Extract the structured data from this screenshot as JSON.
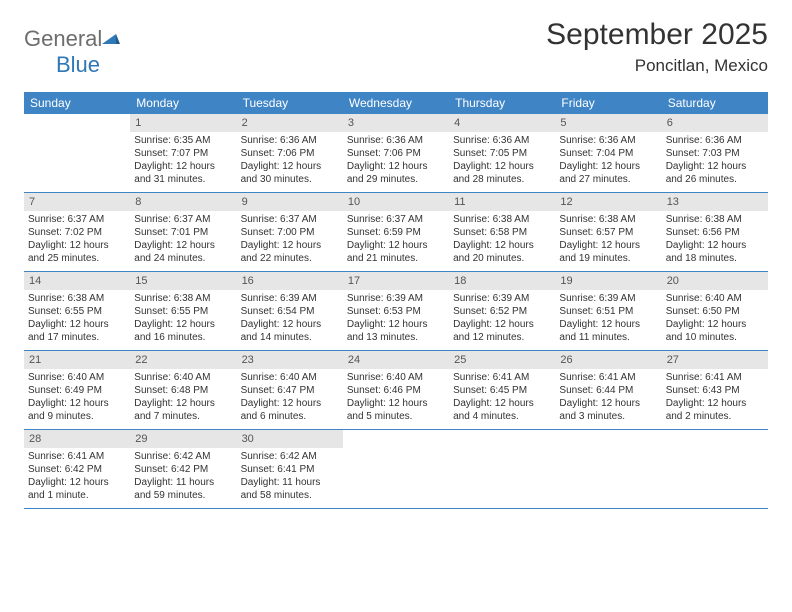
{
  "logo": {
    "text1": "General",
    "text2": "Blue"
  },
  "header": {
    "month_title": "September 2025",
    "location": "Poncitlan, Mexico"
  },
  "colors": {
    "header_bar": "#3f85c6",
    "daynum_bg": "#e6e6e6",
    "text": "#333333",
    "logo_gray": "#6e6e6e",
    "logo_blue": "#2f77b5",
    "row_divider": "#3f85c6",
    "background": "#ffffff"
  },
  "typography": {
    "title_fontsize": 30,
    "location_fontsize": 17,
    "weekday_fontsize": 12,
    "cell_fontsize": 10,
    "logo_fontsize": 22
  },
  "weekdays": [
    "Sunday",
    "Monday",
    "Tuesday",
    "Wednesday",
    "Thursday",
    "Friday",
    "Saturday"
  ],
  "weeks": [
    [
      null,
      {
        "num": "1",
        "sunrise": "Sunrise: 6:35 AM",
        "sunset": "Sunset: 7:07 PM",
        "daylight": "Daylight: 12 hours and 31 minutes."
      },
      {
        "num": "2",
        "sunrise": "Sunrise: 6:36 AM",
        "sunset": "Sunset: 7:06 PM",
        "daylight": "Daylight: 12 hours and 30 minutes."
      },
      {
        "num": "3",
        "sunrise": "Sunrise: 6:36 AM",
        "sunset": "Sunset: 7:06 PM",
        "daylight": "Daylight: 12 hours and 29 minutes."
      },
      {
        "num": "4",
        "sunrise": "Sunrise: 6:36 AM",
        "sunset": "Sunset: 7:05 PM",
        "daylight": "Daylight: 12 hours and 28 minutes."
      },
      {
        "num": "5",
        "sunrise": "Sunrise: 6:36 AM",
        "sunset": "Sunset: 7:04 PM",
        "daylight": "Daylight: 12 hours and 27 minutes."
      },
      {
        "num": "6",
        "sunrise": "Sunrise: 6:36 AM",
        "sunset": "Sunset: 7:03 PM",
        "daylight": "Daylight: 12 hours and 26 minutes."
      }
    ],
    [
      {
        "num": "7",
        "sunrise": "Sunrise: 6:37 AM",
        "sunset": "Sunset: 7:02 PM",
        "daylight": "Daylight: 12 hours and 25 minutes."
      },
      {
        "num": "8",
        "sunrise": "Sunrise: 6:37 AM",
        "sunset": "Sunset: 7:01 PM",
        "daylight": "Daylight: 12 hours and 24 minutes."
      },
      {
        "num": "9",
        "sunrise": "Sunrise: 6:37 AM",
        "sunset": "Sunset: 7:00 PM",
        "daylight": "Daylight: 12 hours and 22 minutes."
      },
      {
        "num": "10",
        "sunrise": "Sunrise: 6:37 AM",
        "sunset": "Sunset: 6:59 PM",
        "daylight": "Daylight: 12 hours and 21 minutes."
      },
      {
        "num": "11",
        "sunrise": "Sunrise: 6:38 AM",
        "sunset": "Sunset: 6:58 PM",
        "daylight": "Daylight: 12 hours and 20 minutes."
      },
      {
        "num": "12",
        "sunrise": "Sunrise: 6:38 AM",
        "sunset": "Sunset: 6:57 PM",
        "daylight": "Daylight: 12 hours and 19 minutes."
      },
      {
        "num": "13",
        "sunrise": "Sunrise: 6:38 AM",
        "sunset": "Sunset: 6:56 PM",
        "daylight": "Daylight: 12 hours and 18 minutes."
      }
    ],
    [
      {
        "num": "14",
        "sunrise": "Sunrise: 6:38 AM",
        "sunset": "Sunset: 6:55 PM",
        "daylight": "Daylight: 12 hours and 17 minutes."
      },
      {
        "num": "15",
        "sunrise": "Sunrise: 6:38 AM",
        "sunset": "Sunset: 6:55 PM",
        "daylight": "Daylight: 12 hours and 16 minutes."
      },
      {
        "num": "16",
        "sunrise": "Sunrise: 6:39 AM",
        "sunset": "Sunset: 6:54 PM",
        "daylight": "Daylight: 12 hours and 14 minutes."
      },
      {
        "num": "17",
        "sunrise": "Sunrise: 6:39 AM",
        "sunset": "Sunset: 6:53 PM",
        "daylight": "Daylight: 12 hours and 13 minutes."
      },
      {
        "num": "18",
        "sunrise": "Sunrise: 6:39 AM",
        "sunset": "Sunset: 6:52 PM",
        "daylight": "Daylight: 12 hours and 12 minutes."
      },
      {
        "num": "19",
        "sunrise": "Sunrise: 6:39 AM",
        "sunset": "Sunset: 6:51 PM",
        "daylight": "Daylight: 12 hours and 11 minutes."
      },
      {
        "num": "20",
        "sunrise": "Sunrise: 6:40 AM",
        "sunset": "Sunset: 6:50 PM",
        "daylight": "Daylight: 12 hours and 10 minutes."
      }
    ],
    [
      {
        "num": "21",
        "sunrise": "Sunrise: 6:40 AM",
        "sunset": "Sunset: 6:49 PM",
        "daylight": "Daylight: 12 hours and 9 minutes."
      },
      {
        "num": "22",
        "sunrise": "Sunrise: 6:40 AM",
        "sunset": "Sunset: 6:48 PM",
        "daylight": "Daylight: 12 hours and 7 minutes."
      },
      {
        "num": "23",
        "sunrise": "Sunrise: 6:40 AM",
        "sunset": "Sunset: 6:47 PM",
        "daylight": "Daylight: 12 hours and 6 minutes."
      },
      {
        "num": "24",
        "sunrise": "Sunrise: 6:40 AM",
        "sunset": "Sunset: 6:46 PM",
        "daylight": "Daylight: 12 hours and 5 minutes."
      },
      {
        "num": "25",
        "sunrise": "Sunrise: 6:41 AM",
        "sunset": "Sunset: 6:45 PM",
        "daylight": "Daylight: 12 hours and 4 minutes."
      },
      {
        "num": "26",
        "sunrise": "Sunrise: 6:41 AM",
        "sunset": "Sunset: 6:44 PM",
        "daylight": "Daylight: 12 hours and 3 minutes."
      },
      {
        "num": "27",
        "sunrise": "Sunrise: 6:41 AM",
        "sunset": "Sunset: 6:43 PM",
        "daylight": "Daylight: 12 hours and 2 minutes."
      }
    ],
    [
      {
        "num": "28",
        "sunrise": "Sunrise: 6:41 AM",
        "sunset": "Sunset: 6:42 PM",
        "daylight": "Daylight: 12 hours and 1 minute."
      },
      {
        "num": "29",
        "sunrise": "Sunrise: 6:42 AM",
        "sunset": "Sunset: 6:42 PM",
        "daylight": "Daylight: 11 hours and 59 minutes."
      },
      {
        "num": "30",
        "sunrise": "Sunrise: 6:42 AM",
        "sunset": "Sunset: 6:41 PM",
        "daylight": "Daylight: 11 hours and 58 minutes."
      },
      null,
      null,
      null,
      null
    ]
  ]
}
